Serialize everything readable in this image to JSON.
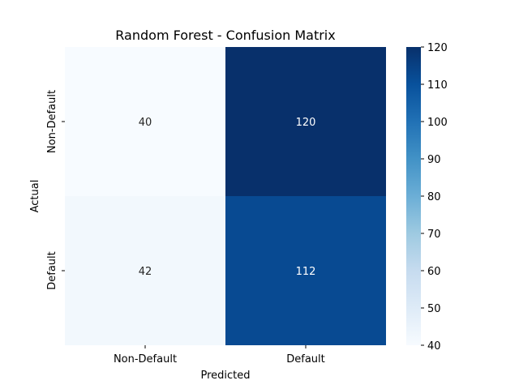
{
  "chart_data": {
    "type": "heatmap",
    "title": "Random Forest - Confusion Matrix",
    "xlabel": "Predicted",
    "ylabel": "Actual",
    "x_categories": [
      "Non-Default",
      "Default"
    ],
    "y_categories": [
      "Non-Default",
      "Default"
    ],
    "values": [
      [
        40,
        120
      ],
      [
        42,
        112
      ]
    ],
    "colorbar": {
      "min": 40,
      "max": 120,
      "ticks": [
        40,
        50,
        60,
        70,
        80,
        90,
        100,
        110,
        120
      ]
    },
    "colormap": "Blues",
    "colors": {
      "low": "#f7fbff",
      "high": "#08306b",
      "text_light": "#ffffff",
      "text_dark": "#262626"
    },
    "grid": false,
    "legend": "colorbar-right"
  }
}
